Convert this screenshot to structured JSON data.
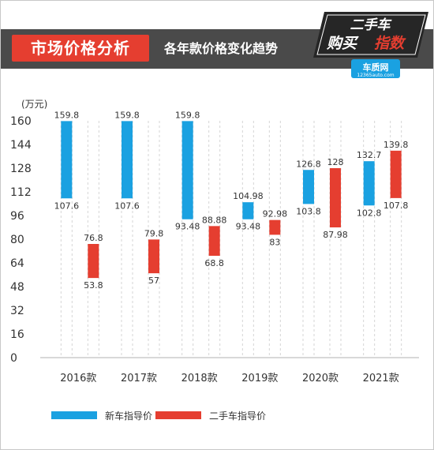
{
  "header": {
    "title": "市场价格分析",
    "subtitle": "各年款价格变化趋势",
    "logo_text": "二手车购买指数",
    "logo_site": "车质网",
    "logo_url": "12365auto.com"
  },
  "colors": {
    "new": "#1aa1e1",
    "used": "#e53e30",
    "band": "#4a4a4a",
    "grid": "#d6d6d6"
  },
  "chart_data": {
    "type": "range_bar",
    "unit_label": "(万元)",
    "categories": [
      "2016款",
      "2017款",
      "2018款",
      "2019款",
      "2020款",
      "2021款"
    ],
    "series": [
      {
        "name": "新车指导价",
        "low": [
          107.6,
          107.6,
          93.48,
          93.48,
          103.8,
          102.8
        ],
        "high": [
          159.8,
          159.8,
          159.8,
          104.98,
          126.8,
          132.7
        ],
        "low_labels": [
          "107.6",
          "107.6",
          "93.48",
          "93.48",
          "103.8",
          "102.8"
        ],
        "high_labels": [
          "159.8",
          "159.8",
          "159.8",
          "104.98",
          "126.8",
          "132.7"
        ]
      },
      {
        "name": "二手车指导价",
        "low": [
          53.8,
          57,
          68.8,
          83,
          87.98,
          107.8
        ],
        "high": [
          76.8,
          79.8,
          88.88,
          92.98,
          128,
          139.8
        ],
        "low_labels": [
          "53.8",
          "57",
          "68.8",
          "83",
          "87.98",
          "107.8"
        ],
        "high_labels": [
          "76.8",
          "79.8",
          "88.88",
          "92.98",
          "128",
          "139.8"
        ]
      }
    ],
    "ylim": [
      0,
      160
    ],
    "yticks": [
      0,
      16,
      32,
      48,
      64,
      80,
      96,
      112,
      128,
      144,
      160
    ],
    "grid": "dashed-vertical",
    "legend_position": "bottom"
  }
}
